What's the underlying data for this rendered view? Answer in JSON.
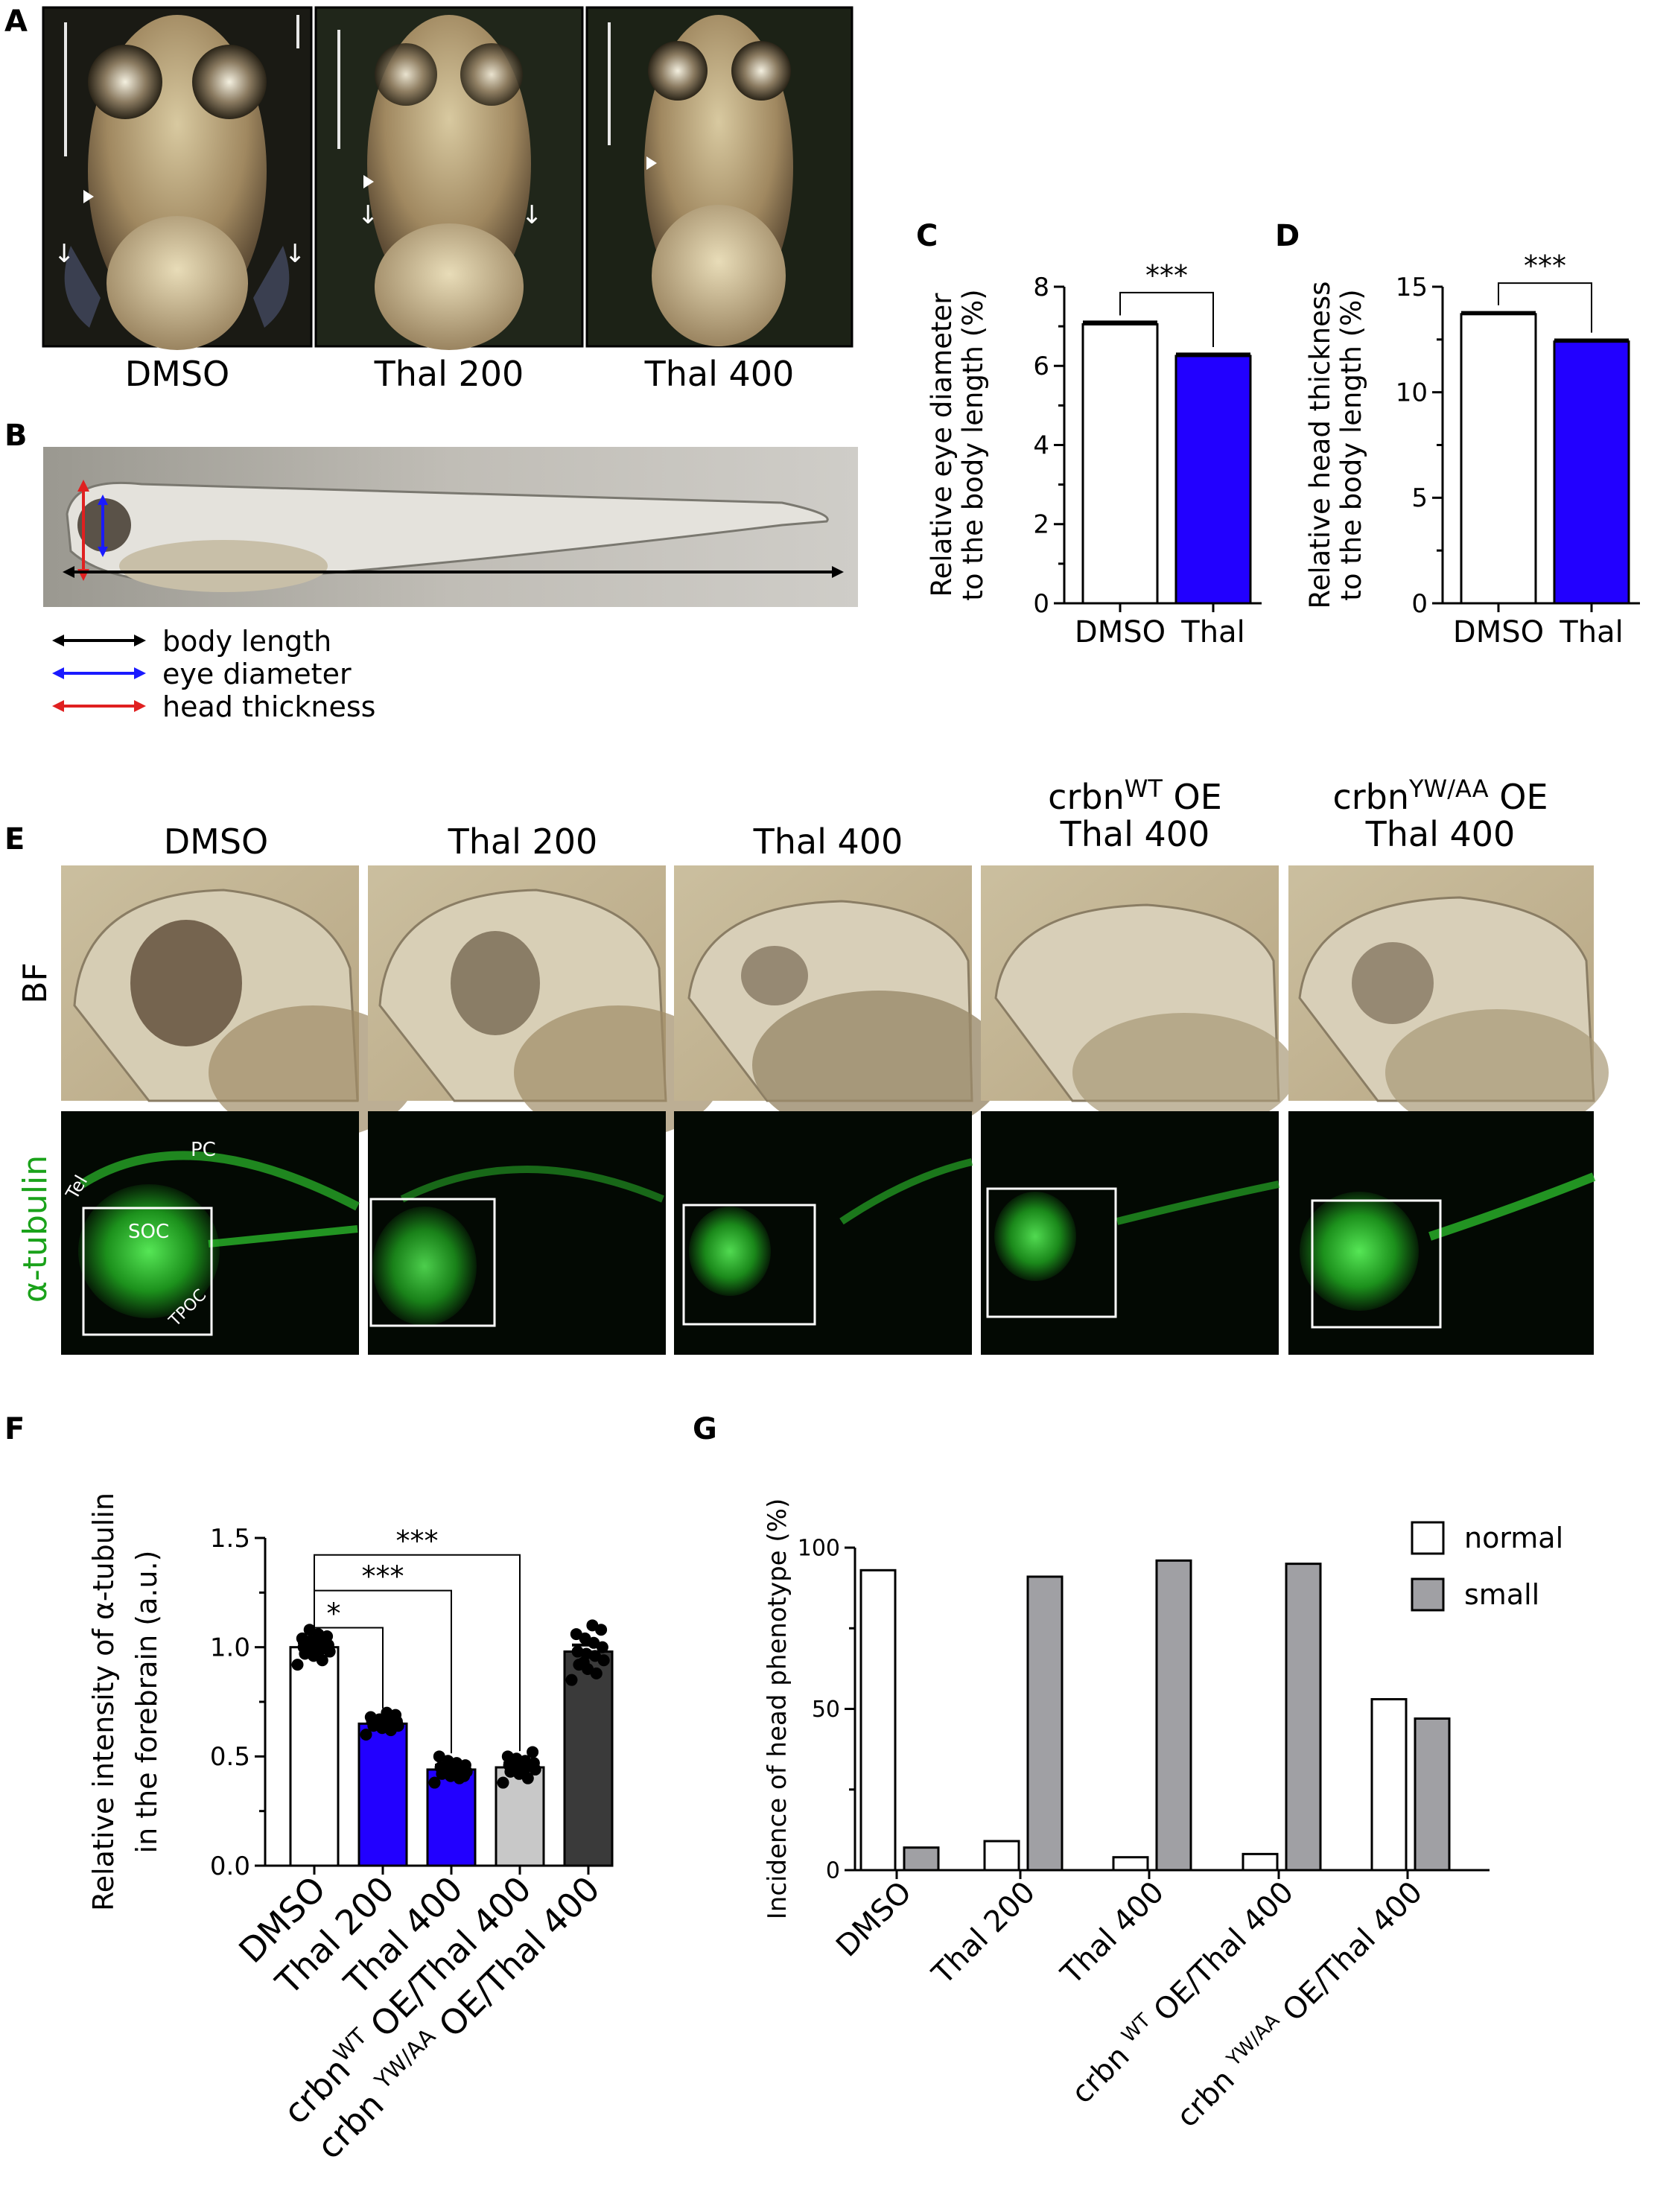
{
  "panels": {
    "A": {
      "label": "A",
      "conditions": [
        "DMSO",
        "Thal 200",
        "Thal 400"
      ]
    },
    "B": {
      "label": "B",
      "legend": [
        {
          "text": "body length",
          "color": "#000000"
        },
        {
          "text": "eye diameter",
          "color": "#1a1aff"
        },
        {
          "text": "head thickness",
          "color": "#e02020"
        }
      ]
    },
    "E": {
      "label": "E",
      "row_labels": [
        "BF",
        "α-tubulin"
      ],
      "headers": [
        {
          "line1": "DMSO"
        },
        {
          "line1": "Thal 200"
        },
        {
          "line1": "Thal 400"
        },
        {
          "base": "crbn",
          "sup": "WT",
          "suffix": " OE",
          "line2": "Thal 400"
        },
        {
          "base": "crbn",
          "sup": "YW/AA",
          "suffix": " OE",
          "line2": "Thal 400"
        }
      ],
      "annotations": [
        "PC",
        "Tel",
        "SOC",
        "TPOC"
      ]
    },
    "F": {
      "label": "F"
    },
    "G": {
      "label": "G"
    },
    "C": {
      "label": "C"
    },
    "D": {
      "label": "D"
    }
  },
  "chart_data": [
    {
      "id": "C",
      "type": "bar",
      "categories": [
        "DMSO",
        "Thal"
      ],
      "values": [
        7.05,
        6.25
      ],
      "errors": [
        0.05,
        0.04
      ],
      "colors": [
        "#ffffff",
        "#2200ff"
      ],
      "ylabel_line1": "Relative eye diameter",
      "ylabel_line2": "to the body length (%)",
      "ylim": [
        0,
        8
      ],
      "yticks": [
        0,
        2,
        4,
        6,
        8
      ],
      "significance": [
        {
          "from": 0,
          "to": 1,
          "label": "***"
        }
      ]
    },
    {
      "id": "D",
      "type": "bar",
      "categories": [
        "DMSO",
        "Thal"
      ],
      "values": [
        13.7,
        12.4
      ],
      "errors": [
        0.06,
        0.06
      ],
      "colors": [
        "#ffffff",
        "#2200ff"
      ],
      "ylabel_line1": "Relative head thickness",
      "ylabel_line2": "to the body length (%)",
      "ylim": [
        0,
        15
      ],
      "yticks": [
        0,
        5,
        10,
        15
      ],
      "significance": [
        {
          "from": 0,
          "to": 1,
          "label": "***"
        }
      ]
    },
    {
      "id": "F",
      "type": "bar",
      "categories": [
        {
          "main": "DMSO"
        },
        {
          "main": "Thal 200"
        },
        {
          "main": "Thal 400"
        },
        {
          "pre": "crbn",
          "sup": "WT",
          "post": " OE/Thal 400"
        },
        {
          "pre": "crbn ",
          "sup": "YW/AA",
          "post": " OE/Thal 400"
        }
      ],
      "values": [
        1.0,
        0.65,
        0.44,
        0.45,
        0.98
      ],
      "errors": [
        0.02,
        0.015,
        0.02,
        0.02,
        0.03
      ],
      "colors": [
        "#ffffff",
        "#2200ff",
        "#2200ff",
        "#c8c8c8",
        "#3a3a3a"
      ],
      "points": [
        [
          0.92,
          0.94,
          0.96,
          0.97,
          0.98,
          0.99,
          1.0,
          1.0,
          1.01,
          1.02,
          1.03,
          1.04,
          1.05,
          1.06,
          1.08
        ],
        [
          0.6,
          0.62,
          0.63,
          0.64,
          0.64,
          0.65,
          0.65,
          0.66,
          0.66,
          0.67,
          0.67,
          0.68,
          0.69,
          0.7
        ],
        [
          0.38,
          0.4,
          0.41,
          0.42,
          0.43,
          0.44,
          0.44,
          0.45,
          0.46,
          0.47,
          0.48,
          0.5,
          0.41,
          0.46
        ],
        [
          0.38,
          0.4,
          0.42,
          0.43,
          0.44,
          0.45,
          0.45,
          0.46,
          0.47,
          0.48,
          0.49,
          0.5,
          0.52,
          0.44
        ],
        [
          0.85,
          0.88,
          0.9,
          0.92,
          0.94,
          0.96,
          0.97,
          0.98,
          1.0,
          1.02,
          1.04,
          1.06,
          1.08,
          1.1,
          0.93
        ]
      ],
      "ylabel_line1": "Relative intensity of α-tubulin",
      "ylabel_line2": "in the forebrain (a.u.)",
      "ylim": [
        0,
        1.5
      ],
      "yticks": [
        "0.0",
        "0.5",
        "1.0",
        "1.5"
      ],
      "significance": [
        {
          "from": 0,
          "to": 1,
          "label": "*"
        },
        {
          "from": 0,
          "to": 2,
          "label": "***"
        },
        {
          "from": 0,
          "to": 3,
          "label": "***"
        }
      ]
    },
    {
      "id": "G",
      "type": "bar",
      "categories": [
        {
          "main": "DMSO"
        },
        {
          "main": "Thal 200"
        },
        {
          "main": "Thal 400"
        },
        {
          "pre": "crbn ",
          "sup": "WT",
          "post": " OE/Thal 400"
        },
        {
          "pre": "crbn ",
          "sup": "YW/AA",
          "post": " OE/Thal 400"
        }
      ],
      "series": [
        {
          "name": "normal",
          "values": [
            93,
            9,
            4,
            5,
            53
          ],
          "color": "#ffffff"
        },
        {
          "name": "small",
          "values": [
            7,
            91,
            96,
            95,
            47
          ],
          "color": "#a0a0a4"
        }
      ],
      "ylabel": "Incidence of head phenotype (%)",
      "ylim": [
        0,
        100
      ],
      "yticks": [
        0,
        50,
        100
      ],
      "legend": "top-right"
    }
  ]
}
